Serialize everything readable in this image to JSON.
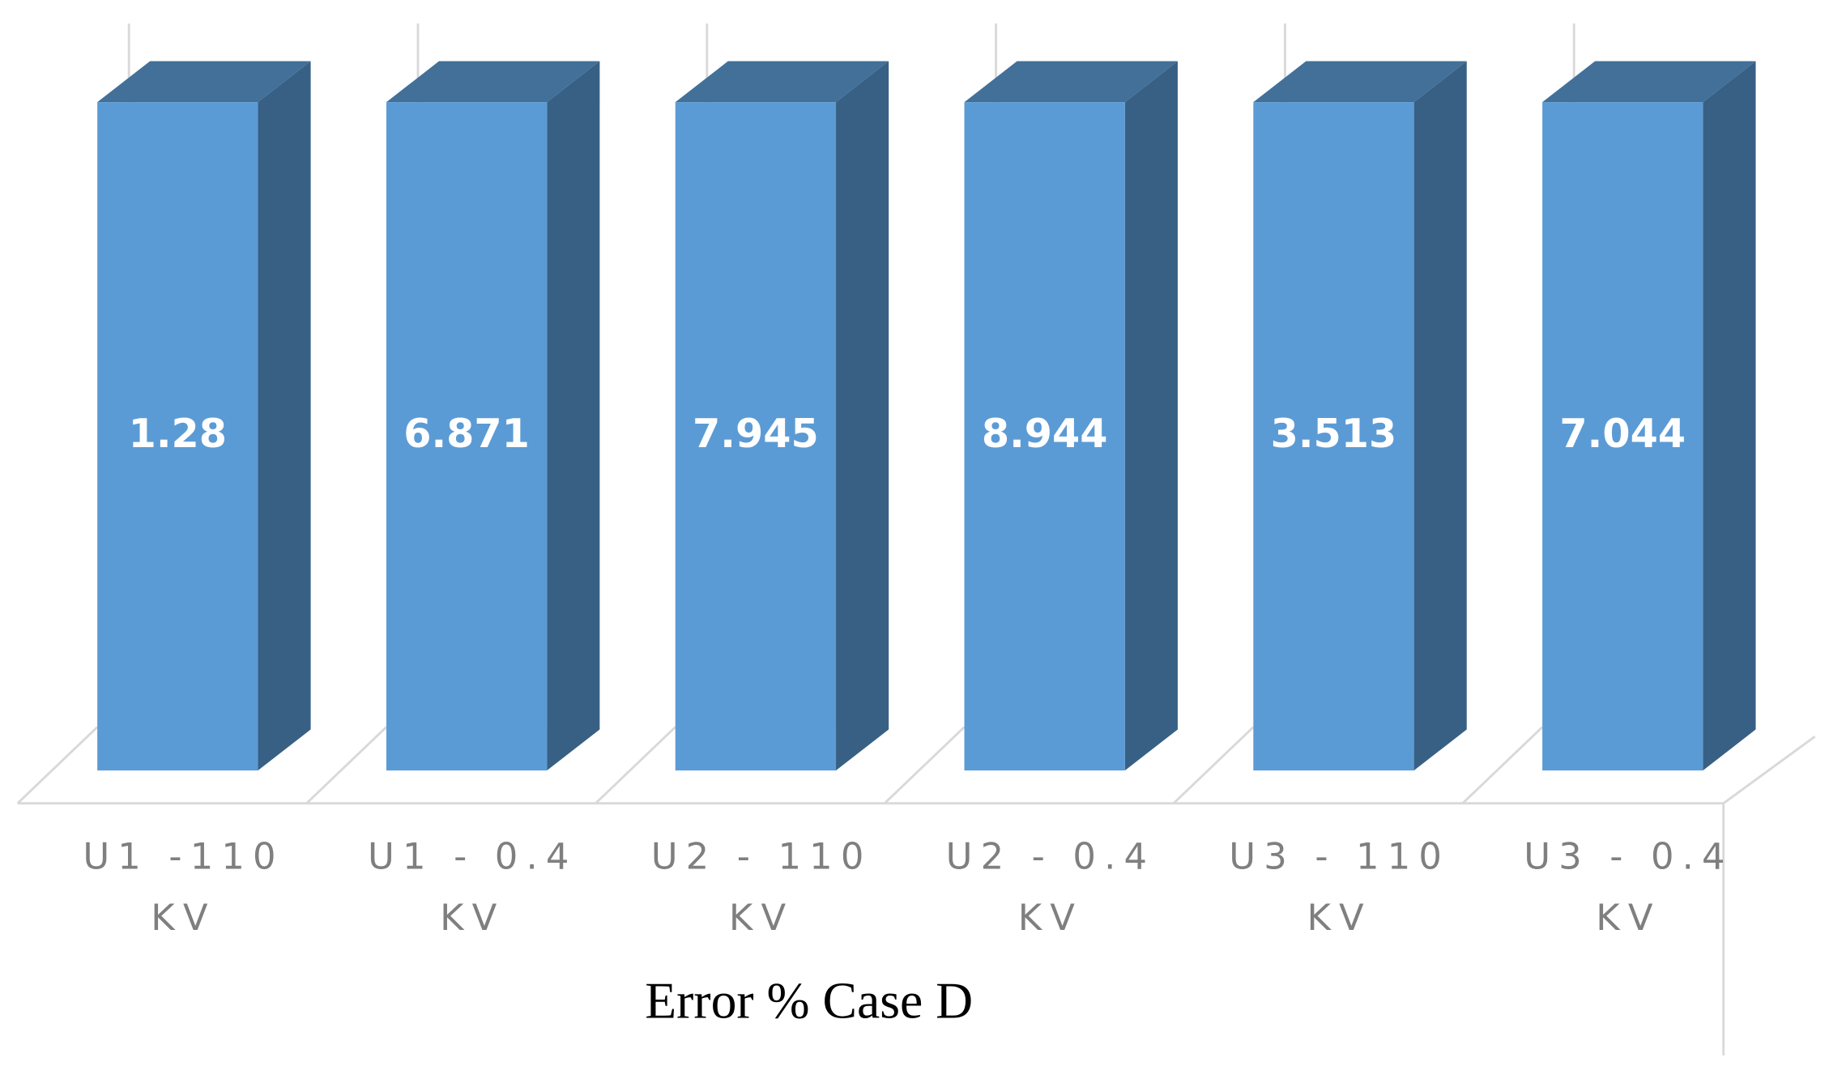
{
  "chart_data": {
    "type": "bar3d",
    "title": "Error % Case D",
    "categories": [
      "U1 -110 KV",
      "U1 - 0.4 KV",
      "U2 - 110 KV",
      "U2 - 0.4 KV",
      "U3 - 110 KV",
      "U3 - 0.4 KV"
    ],
    "values": [
      1.28,
      6.871,
      7.945,
      8.944,
      3.513,
      7.044
    ],
    "color": "#5b9bd5",
    "ylim": [
      0,
      1
    ]
  }
}
